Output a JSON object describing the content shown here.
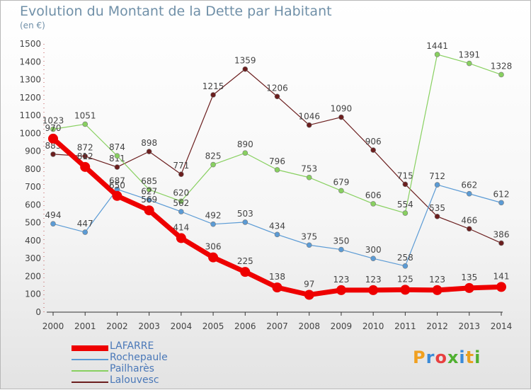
{
  "header": {
    "title": "Evolution du Montant de la Dette par Habitant",
    "unit": "(en €)"
  },
  "logo": {
    "text": "Proxiti",
    "letter_colors": [
      "#f0a020",
      "#3a8ad8",
      "#e84040",
      "#50b030",
      "#3a8ad8",
      "#e8a020",
      "#50b030"
    ]
  },
  "chart_data": {
    "type": "line",
    "x": [
      2000,
      2001,
      2002,
      2003,
      2004,
      2005,
      2006,
      2007,
      2008,
      2009,
      2010,
      2011,
      2012,
      2013,
      2014
    ],
    "ylim": [
      0,
      1500
    ],
    "yticks": [
      0,
      100,
      200,
      300,
      400,
      500,
      600,
      700,
      800,
      900,
      1000,
      1100,
      1200,
      1300,
      1400,
      1500
    ],
    "grid": false,
    "legend_position": "bottom-left",
    "series": [
      {
        "name": "Lalouvesc",
        "color": "#6b1e1e",
        "values": [
          883,
          872,
          811,
          898,
          771,
          1215,
          1359,
          1206,
          1046,
          1090,
          906,
          715,
          535,
          466,
          386
        ]
      },
      {
        "name": "Pailharès",
        "color": "#88d060",
        "values": [
          1023,
          1051,
          874,
          685,
          620,
          825,
          890,
          796,
          753,
          679,
          606,
          554,
          1441,
          1391,
          1328
        ]
      },
      {
        "name": "Rochepaule",
        "color": "#5b9bd5",
        "values": [
          494,
          447,
          687,
          627,
          562,
          492,
          503,
          434,
          375,
          350,
          300,
          258,
          712,
          662,
          612
        ]
      },
      {
        "name": "LAFARRE",
        "color": "#ee0000",
        "values": [
          970,
          812,
          650,
          569,
          414,
          306,
          225,
          138,
          97,
          123,
          123,
          125,
          123,
          135,
          141
        ]
      }
    ]
  }
}
